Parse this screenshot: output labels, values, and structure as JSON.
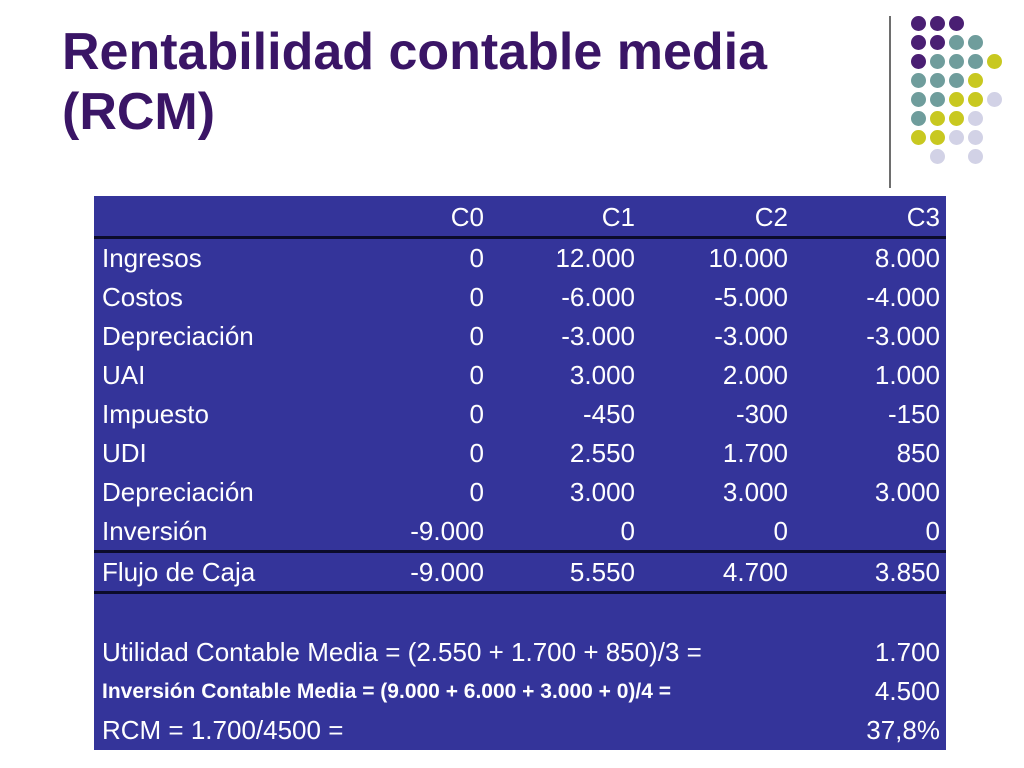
{
  "slide": {
    "title_line1": "Rentabilidad contable media",
    "title_line2": "(RCM)"
  },
  "table": {
    "headers": [
      "",
      "C0",
      "C1",
      "C2",
      "C3"
    ],
    "rows": [
      {
        "label": "Ingresos",
        "c0": "0",
        "c1": "12.000",
        "c2": "10.000",
        "c3": "8.000"
      },
      {
        "label": "Costos",
        "c0": "0",
        "c1": "-6.000",
        "c2": "-5.000",
        "c3": "-4.000"
      },
      {
        "label": "Depreciación",
        "c0": "0",
        "c1": "-3.000",
        "c2": "-3.000",
        "c3": "-3.000"
      },
      {
        "label": "UAI",
        "c0": "0",
        "c1": "3.000",
        "c2": "2.000",
        "c3": "1.000"
      },
      {
        "label": "Impuesto",
        "c0": "0",
        "c1": "-450",
        "c2": "-300",
        "c3": "-150"
      },
      {
        "label": "UDI",
        "c0": "0",
        "c1": "2.550",
        "c2": "1.700",
        "c3": "850"
      },
      {
        "label": "Depreciación",
        "c0": "0",
        "c1": "3.000",
        "c2": "3.000",
        "c3": "3.000"
      },
      {
        "label": "Inversión",
        "c0": "-9.000",
        "c1": "0",
        "c2": "0",
        "c3": "0"
      }
    ],
    "total": {
      "label": "Flujo de Caja",
      "c0": "-9.000",
      "c1": "5.550",
      "c2": "4.700",
      "c3": "3.850"
    },
    "summary": [
      {
        "label": "Utilidad Contable Media = (2.550 + 1.700 + 850)/3 =",
        "value": "1.700"
      },
      {
        "label": "Inversión Contable Media = (9.000 + 6.000 + 3.000 + 0)/4 =",
        "value": "4.500"
      },
      {
        "label": "RCM = 1.700/4500 =",
        "value": "37,8%"
      }
    ]
  },
  "colors": {
    "title": "#3a1566",
    "table_bg": "#34349a",
    "dot_purple": "#4a1f73",
    "dot_teal": "#6f9d9c",
    "dot_lime": "#c8c820",
    "dot_lavender": "#d2d2e6"
  }
}
